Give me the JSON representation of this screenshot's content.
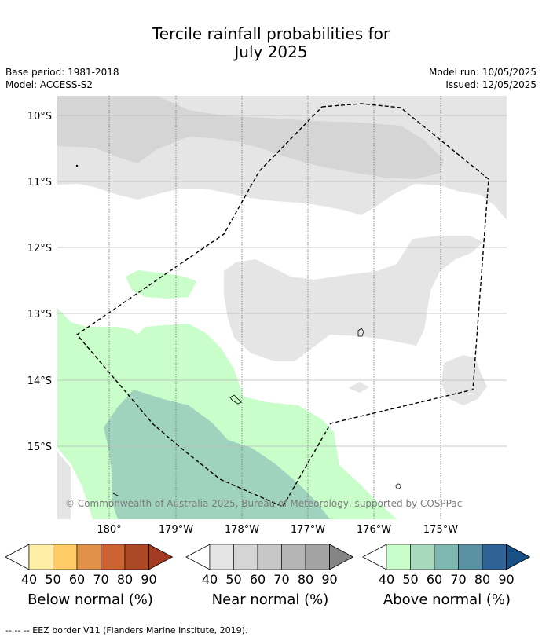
{
  "title": {
    "line1": "Tercile rainfall probabilities for",
    "line2": "July 2025"
  },
  "meta": {
    "base_period": "Base period: 1981-2018",
    "model": "Model: ACCESS-S2",
    "model_run": "Model run: 10/05/2025",
    "issued": "Issued: 12/05/2025"
  },
  "map": {
    "lat_labels": [
      "10°S",
      "11°S",
      "12°S",
      "13°S",
      "14°S",
      "15°S"
    ],
    "lon_labels": [
      "180°",
      "179°W",
      "178°W",
      "177°W",
      "176°W",
      "175°W"
    ],
    "copyright": "© Commonwealth of Australia 2025, Bureau of Meteorology, supported by COSPPac"
  },
  "colorbars": [
    {
      "name": "Below normal (%)",
      "ticks": [
        "40",
        "50",
        "60",
        "70",
        "80",
        "90"
      ],
      "colors": [
        "#ffeea6",
        "#fecb64",
        "#e1924a",
        "#cd6333",
        "#ad4827",
        "#a33a22"
      ]
    },
    {
      "name": "Near normal (%)",
      "ticks": [
        "40",
        "50",
        "60",
        "70",
        "80",
        "90"
      ],
      "colors": [
        "#e5e5e5",
        "#d5d5d5",
        "#c7c7c7",
        "#b4b4b4",
        "#a3a3a3",
        "#858585"
      ]
    },
    {
      "name": "Above normal (%)",
      "ticks": [
        "40",
        "50",
        "60",
        "70",
        "80",
        "90"
      ],
      "colors": [
        "#c9fecb",
        "#a7d9bd",
        "#7fb6b0",
        "#5a92a3",
        "#2f6396",
        "#184f84"
      ]
    }
  ],
  "footer": "--  --  -- EEZ border V11 (Flanders Marine Institute, 2019)."
}
